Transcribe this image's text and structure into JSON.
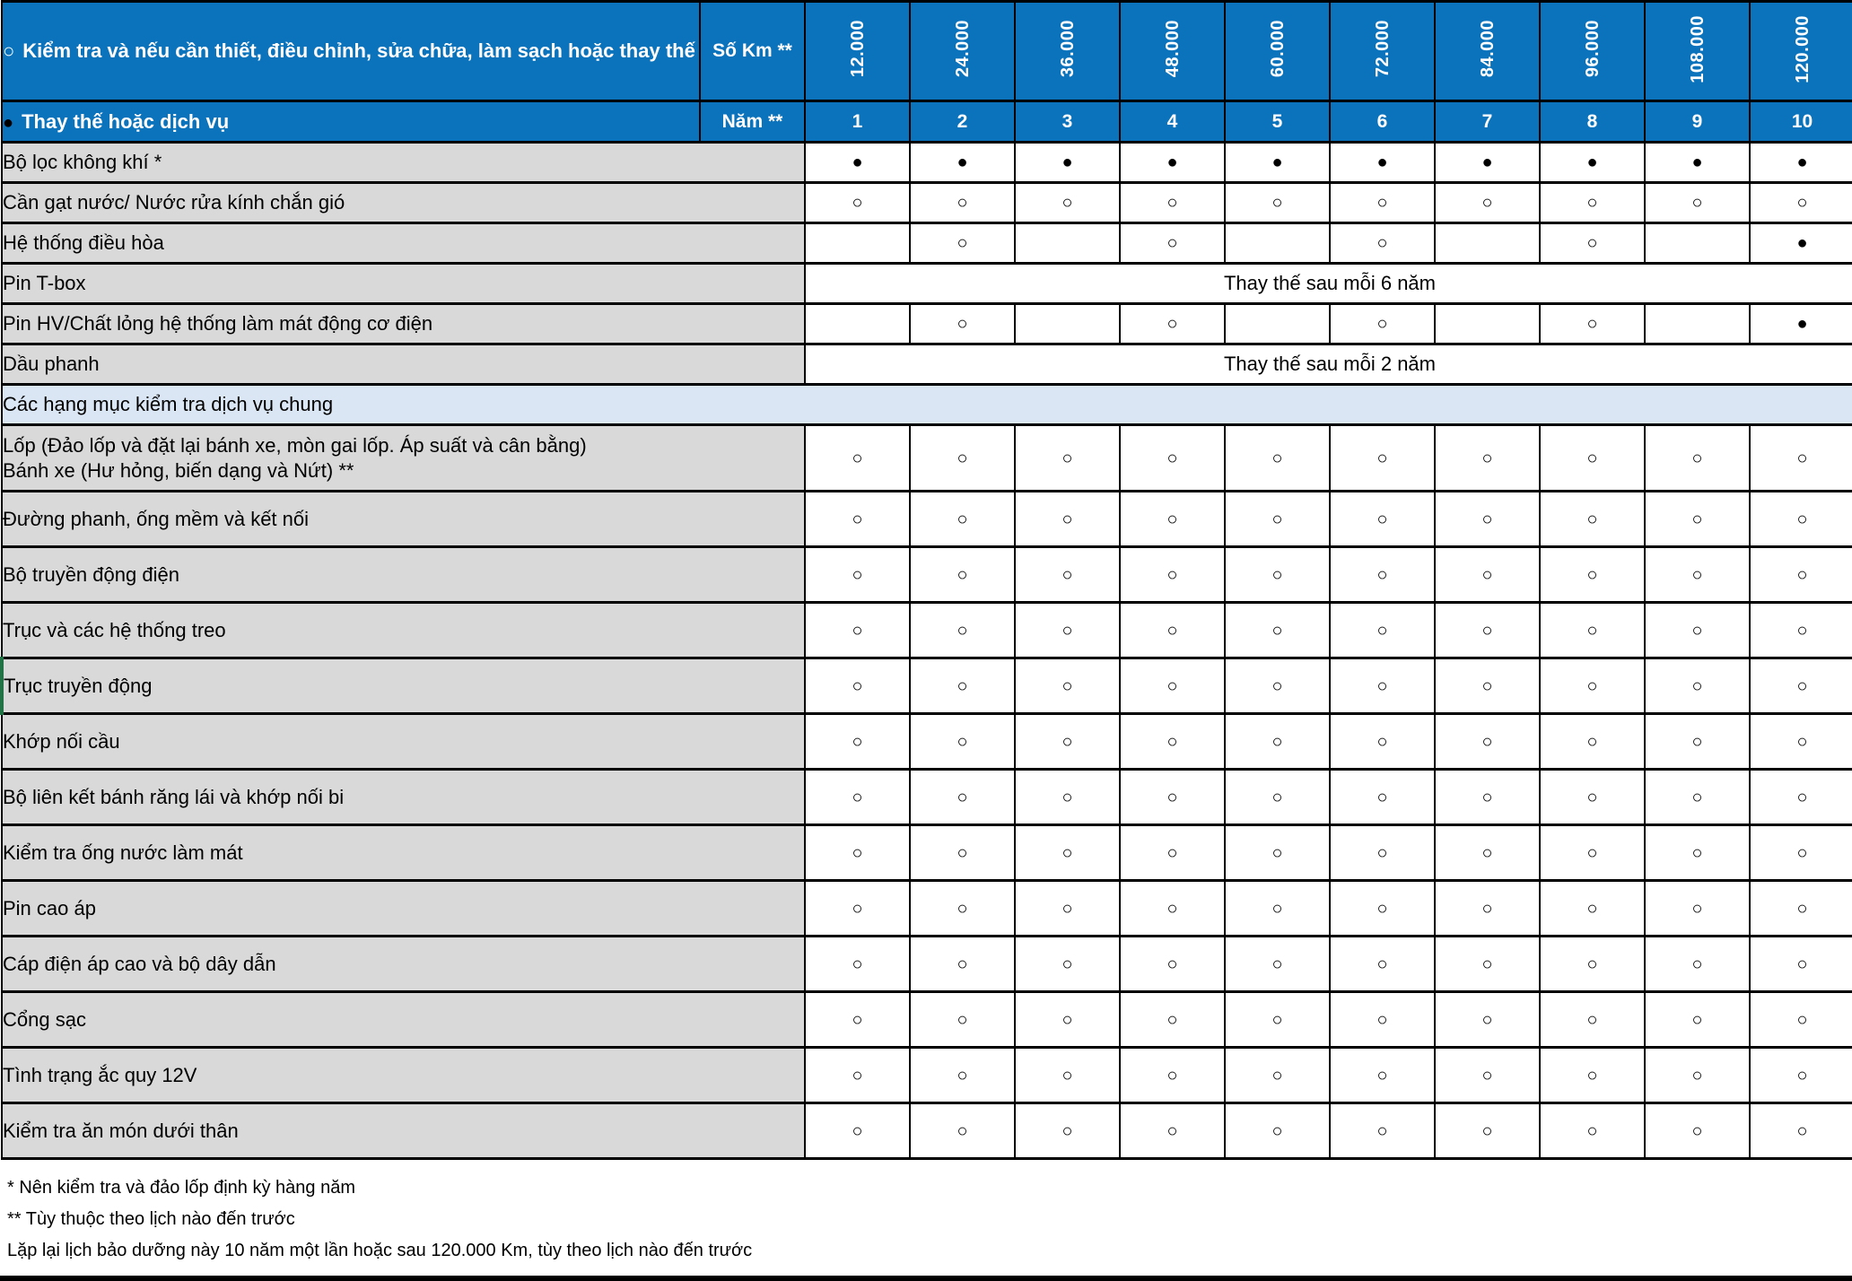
{
  "header": {
    "row1_bullet": "○",
    "row1_text": "Kiểm tra và nếu cần thiết, điều chỉnh, sửa chữa, làm sạch hoặc thay thế",
    "km_unit": "Số Km **",
    "km_values": [
      "12.000",
      "24.000",
      "36.000",
      "48.000",
      "60.000",
      "72.000",
      "84.000",
      "96.000",
      "108.000",
      "120.000"
    ],
    "row2_bullet": "●",
    "row2_text": "Thay thế hoặc dịch vụ",
    "year_unit": "Năm **",
    "year_values": [
      "1",
      "2",
      "3",
      "4",
      "5",
      "6",
      "7",
      "8",
      "9",
      "10"
    ]
  },
  "symbols": {
    "F": "●",
    "O": "○"
  },
  "colors": {
    "header_blue": "#0b72bc",
    "label_gray": "#d9d9d9",
    "section_blue": "#dbe6f4",
    "grid_black": "#000000",
    "green_accent": "#217346"
  },
  "rows": [
    {
      "type": "item",
      "label": "Bộ lọc không khí *",
      "cells": [
        "F",
        "F",
        "F",
        "F",
        "F",
        "F",
        "F",
        "F",
        "F",
        "F"
      ]
    },
    {
      "type": "item",
      "label": "Cần gạt nước/ Nước rửa kính chắn gió",
      "cells": [
        "O",
        "O",
        "O",
        "O",
        "O",
        "O",
        "O",
        "O",
        "O",
        "O"
      ]
    },
    {
      "type": "item",
      "label": "Hệ thống điều hòa",
      "cells": [
        "",
        "O",
        "",
        "O",
        "",
        "O",
        "",
        "O",
        "",
        "F"
      ]
    },
    {
      "type": "merged",
      "label": "Pin T-box",
      "text": "Thay thế sau mỗi 6 năm"
    },
    {
      "type": "item",
      "label": "Pin HV/Chất lỏng hệ thống làm mát động cơ điện",
      "cells": [
        "",
        "O",
        "",
        "O",
        "",
        "O",
        "",
        "O",
        "",
        "F"
      ]
    },
    {
      "type": "merged",
      "label": "Dầu phanh",
      "text": "Thay thế sau mỗi 2 năm"
    },
    {
      "type": "section",
      "label": "Các hạng mục kiểm tra dịch vụ chung"
    },
    {
      "type": "item2",
      "lines": [
        "Lốp (Đảo lốp và đặt lại bánh xe, mòn gai lốp. Áp suất và cân bằng)",
        "Bánh xe (Hư hỏng, biến dạng và Nứt) **"
      ],
      "cells": [
        "O",
        "O",
        "O",
        "O",
        "O",
        "O",
        "O",
        "O",
        "O",
        "O"
      ]
    },
    {
      "type": "item",
      "tall": true,
      "label": "Đường phanh, ống mềm và kết nối",
      "cells": [
        "O",
        "O",
        "O",
        "O",
        "O",
        "O",
        "O",
        "O",
        "O",
        "O"
      ]
    },
    {
      "type": "item",
      "tall": true,
      "label": "Bộ truyền động điện",
      "cells": [
        "O",
        "O",
        "O",
        "O",
        "O",
        "O",
        "O",
        "O",
        "O",
        "O"
      ]
    },
    {
      "type": "item",
      "tall": true,
      "label": "Trục và các hệ thống treo",
      "cells": [
        "O",
        "O",
        "O",
        "O",
        "O",
        "O",
        "O",
        "O",
        "O",
        "O"
      ]
    },
    {
      "type": "item",
      "tall": true,
      "green_left": true,
      "label": "Trục truyền động",
      "cells": [
        "O",
        "O",
        "O",
        "O",
        "O",
        "O",
        "O",
        "O",
        "O",
        "O"
      ]
    },
    {
      "type": "item",
      "tall": true,
      "label": "Khớp nối cầu",
      "cells": [
        "O",
        "O",
        "O",
        "O",
        "O",
        "O",
        "O",
        "O",
        "O",
        "O"
      ]
    },
    {
      "type": "item",
      "tall": true,
      "label": "Bộ liên kết bánh răng lái và khớp nối bi",
      "cells": [
        "O",
        "O",
        "O",
        "O",
        "O",
        "O",
        "O",
        "O",
        "O",
        "O"
      ]
    },
    {
      "type": "item",
      "tall": true,
      "label": "Kiểm tra ống nước làm mát",
      "cells": [
        "O",
        "O",
        "O",
        "O",
        "O",
        "O",
        "O",
        "O",
        "O",
        "O"
      ]
    },
    {
      "type": "item",
      "tall": true,
      "label": "Pin cao áp",
      "cells": [
        "O",
        "O",
        "O",
        "O",
        "O",
        "O",
        "O",
        "O",
        "O",
        "O"
      ]
    },
    {
      "type": "item",
      "tall": true,
      "label": "Cáp điện áp cao và bộ dây dẫn",
      "cells": [
        "O",
        "O",
        "O",
        "O",
        "O",
        "O",
        "O",
        "O",
        "O",
        "O"
      ]
    },
    {
      "type": "item",
      "tall": true,
      "label": "Cổng sạc",
      "cells": [
        "O",
        "O",
        "O",
        "O",
        "O",
        "O",
        "O",
        "O",
        "O",
        "O"
      ]
    },
    {
      "type": "item",
      "tall": true,
      "label": "Tình trạng ắc quy 12V",
      "cells": [
        "O",
        "O",
        "O",
        "O",
        "O",
        "O",
        "O",
        "O",
        "O",
        "O"
      ]
    },
    {
      "type": "item",
      "tall": true,
      "label": "Kiểm tra ăn món dưới thân",
      "cells": [
        "O",
        "O",
        "O",
        "O",
        "O",
        "O",
        "O",
        "O",
        "O",
        "O"
      ]
    }
  ],
  "notes": [
    "* Nên kiểm tra và đảo lốp định kỳ hàng năm",
    "** Tùy thuộc theo lịch nào đến trước",
    "Lặp lại lịch bảo dưỡng này 10 năm một lần hoặc sau 120.000 Km, tùy theo lịch nào đến trước"
  ]
}
